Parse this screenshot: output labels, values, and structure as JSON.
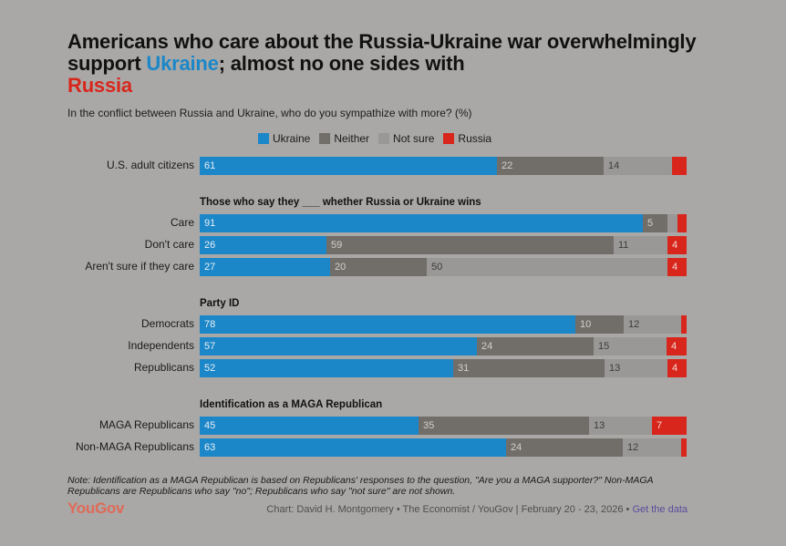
{
  "title": {
    "part1": "Americans who care about the Russia-Ukraine war overwhelmingly support ",
    "ukraine": "Ukraine",
    "part2": "; almost no one sides with ",
    "russia": "Russia"
  },
  "subtitle": "In the conflict between Russia and Ukraine, who do you sympathize with more? (%)",
  "colors": {
    "ukraine": "#1b87c9",
    "neither": "#716d69",
    "not_sure": "#999896",
    "russia": "#d9261c",
    "background": "#a9a8a6"
  },
  "legend": [
    {
      "label": "Ukraine",
      "key": "ukraine"
    },
    {
      "label": "Neither",
      "key": "neither"
    },
    {
      "label": "Not sure",
      "key": "not_sure"
    },
    {
      "label": "Russia",
      "key": "russia"
    }
  ],
  "chart_data": {
    "type": "bar",
    "orientation": "horizontal",
    "stacked": true,
    "title": "Americans who care about the Russia-Ukraine war overwhelmingly support Ukraine; almost no one sides with Russia",
    "subtitle": "In the conflict between Russia and Ukraine, who do you sympathize with more? (%)",
    "series": [
      "Ukraine",
      "Neither",
      "Not sure",
      "Russia"
    ],
    "groups": [
      {
        "heading": "",
        "rows": [
          {
            "label": "U.S. adult citizens",
            "values": [
              61,
              22,
              14,
              3
            ],
            "shown": [
              "61",
              "22",
              "14",
              ""
            ]
          }
        ]
      },
      {
        "heading": "Those who say they ___ whether Russia or Ukraine wins",
        "rows": [
          {
            "label": "Care",
            "values": [
              91,
              5,
              2,
              2
            ],
            "shown": [
              "91",
              "5",
              "",
              ""
            ]
          },
          {
            "label": "Don't care",
            "values": [
              26,
              59,
              11,
              4
            ],
            "shown": [
              "26",
              "59",
              "11",
              "4"
            ]
          },
          {
            "label": "Aren't sure if they care",
            "values": [
              27,
              20,
              50,
              4
            ],
            "shown": [
              "27",
              "20",
              "50",
              "4"
            ]
          }
        ]
      },
      {
        "heading": "Party ID",
        "rows": [
          {
            "label": "Democrats",
            "values": [
              78,
              10,
              12,
              1
            ],
            "shown": [
              "78",
              "10",
              "12",
              ""
            ]
          },
          {
            "label": "Independents",
            "values": [
              57,
              24,
              15,
              4
            ],
            "shown": [
              "57",
              "24",
              "15",
              "4"
            ]
          },
          {
            "label": "Republicans",
            "values": [
              52,
              31,
              13,
              4
            ],
            "shown": [
              "52",
              "31",
              "13",
              "4"
            ]
          }
        ]
      },
      {
        "heading": "Identification as a MAGA Republican",
        "rows": [
          {
            "label": "MAGA Republicans",
            "values": [
              45,
              35,
              13,
              7
            ],
            "shown": [
              "45",
              "35",
              "13",
              "7"
            ]
          },
          {
            "label": "Non-MAGA Republicans",
            "values": [
              63,
              24,
              12,
              1
            ],
            "shown": [
              "63",
              "24",
              "12",
              ""
            ]
          }
        ]
      }
    ]
  },
  "note": "Note: Identification as a MAGA Republican is based on Republicans' responses to the question, \"Are you a MAGA supporter?\" Non-MAGA Republicans are Republicans who say \"no\"; Republicans who say \"not sure\" are not shown.",
  "brand": "YouGov",
  "credit": {
    "text": "Chart: David H. Montgomery • The Economist / YouGov | February 20 - 23, 2026 • ",
    "link": "Get the data"
  }
}
